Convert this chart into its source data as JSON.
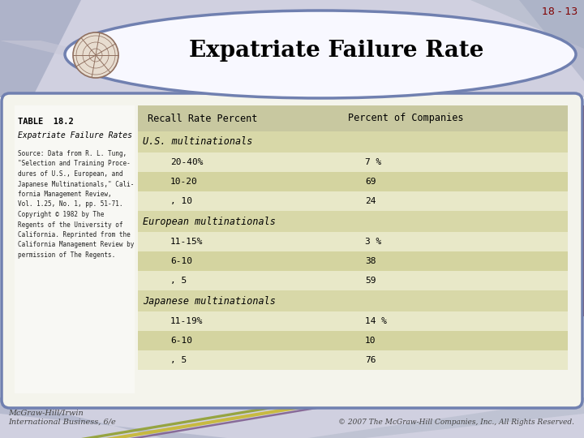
{
  "title": "Expatriate Failure Rate",
  "slide_number": "18 - 13",
  "table_title": "TABLE  18.2",
  "table_subtitle": "Expatriate Failure Rates",
  "source_text": "Source: Data from R. L. Tung,\n\"Selection and Training Proce-\ndures of U.S., European, and\nJapanese Multinationals,\" Cali-\nfornia Management Review,\nVol. 1.25, No. 1, pp. 51-71.\nCopyright © 1982 by The\nRegents of the University of\nCalifornia. Reprinted from the\nCalifornia Management Review by\npermission of The Regents.",
  "col1_header": "Recall Rate Percent",
  "col2_header": "Percent of Companies",
  "sections": [
    {
      "header": "U.S. multinationals",
      "rows": [
        [
          "20-40%",
          "7 %"
        ],
        [
          "10-20",
          "69"
        ],
        [
          ", 10",
          "24"
        ]
      ]
    },
    {
      "header": "European multinationals",
      "rows": [
        [
          "11-15%",
          "3 %"
        ],
        [
          "6-10",
          "38"
        ],
        [
          ", 5",
          "59"
        ]
      ]
    },
    {
      "header": "Japanese multinationals",
      "rows": [
        [
          "11-19%",
          "14 %"
        ],
        [
          "6-10",
          "10"
        ],
        [
          ", 5",
          "76"
        ]
      ]
    }
  ],
  "footer_left1": "McGraw-Hill/Irwin",
  "footer_left2": "International Business, 6/e",
  "footer_right": "© 2007 The McGraw-Hill Companies, Inc., All Rights Reserved.",
  "bg_color": "#ffffff",
  "table_area_bg": "#e8e8c0",
  "header_bg": "#c8c8a0",
  "row_bg_light": "#e8e8c8",
  "row_bg_dark": "#d4d4a0",
  "section_header_bg": "#d8d8a8",
  "left_col_bg": "#f0f0f0",
  "outer_box_bg": "#f4f4ec",
  "outer_box_border": "#7080b0",
  "oval_bg": "#f8f8ff",
  "oval_border": "#7080b0",
  "slide_bg_top": "#d0d0e0",
  "diag_color1": "#a0a8c0",
  "diag_color2": "#b0b8c8",
  "red_stripe": "#802020",
  "green_stripe": "#90a030",
  "olive_stripe": "#c8b830",
  "purple_stripe": "#806090",
  "slide_num_color": "#800000",
  "footer_text_color": "#444444",
  "title_color": "#000000"
}
